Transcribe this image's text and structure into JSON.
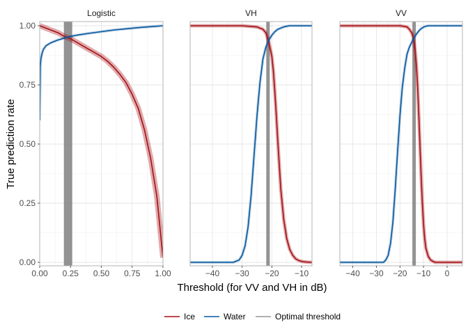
{
  "chart_data": {
    "type": "line",
    "xlabel": "Threshold (for VV and VH in dB)",
    "ylabel": "True prediction rate",
    "ylim": [
      0,
      1
    ],
    "y_ticks": [
      0.0,
      0.25,
      0.5,
      0.75,
      1.0
    ],
    "y_tick_labels": [
      "0.00",
      "0.25",
      "0.50",
      "0.75",
      "1.00"
    ],
    "grid": true,
    "legend_position": "bottom",
    "colors": {
      "Ice": "#a50f15",
      "Water": "#08589e",
      "Optimal threshold": "#808080"
    },
    "legend": [
      "Ice",
      "Water",
      "Optimal threshold"
    ],
    "panels": [
      {
        "title": "Logistic",
        "xlim": [
          0,
          1
        ],
        "x_ticks": [
          0,
          0.25,
          0.5,
          0.75,
          1
        ],
        "x_tick_labels": [
          "0.00",
          "0.25",
          "0.50",
          "0.75",
          "1.00"
        ],
        "optimal_threshold": 0.23,
        "series": [
          {
            "name": "Ice",
            "x": [
              0,
              0.05,
              0.1,
              0.15,
              0.2,
              0.25,
              0.3,
              0.35,
              0.4,
              0.45,
              0.5,
              0.55,
              0.6,
              0.65,
              0.7,
              0.75,
              0.8,
              0.85,
              0.9,
              0.95,
              1.0
            ],
            "y": [
              1.0,
              0.99,
              0.98,
              0.97,
              0.955,
              0.945,
              0.93,
              0.915,
              0.9,
              0.885,
              0.87,
              0.85,
              0.825,
              0.795,
              0.76,
              0.71,
              0.65,
              0.56,
              0.44,
              0.28,
              0.02
            ]
          },
          {
            "name": "Water",
            "x": [
              0,
              0.005,
              0.01,
              0.02,
              0.03,
              0.05,
              0.08,
              0.1,
              0.15,
              0.2,
              0.25,
              0.3,
              0.4,
              0.5,
              0.6,
              0.7,
              0.8,
              0.9,
              1.0
            ],
            "y": [
              0.6,
              0.83,
              0.86,
              0.885,
              0.9,
              0.915,
              0.925,
              0.93,
              0.94,
              0.948,
              0.955,
              0.96,
              0.968,
              0.975,
              0.982,
              0.987,
              0.992,
              0.996,
              1.0
            ]
          }
        ]
      },
      {
        "title": "VH",
        "xlim": [
          -47.5,
          -6.5
        ],
        "x_ticks": [
          -40,
          -30,
          -20,
          -10
        ],
        "x_tick_labels": [
          "−40",
          "−30",
          "−20",
          "−10"
        ],
        "optimal_threshold": -21.3,
        "series": [
          {
            "name": "Ice",
            "x": [
              -47.5,
              -30,
              -25,
              -23,
              -22,
              -21,
              -20,
              -19.5,
              -19,
              -18.5,
              -18,
              -17,
              -16,
              -15,
              -14,
              -13,
              -12,
              -11,
              -10,
              -9,
              -8,
              -6.5
            ],
            "y": [
              1.0,
              1.0,
              0.995,
              0.985,
              0.97,
              0.93,
              0.87,
              0.81,
              0.72,
              0.62,
              0.51,
              0.31,
              0.18,
              0.1,
              0.055,
              0.03,
              0.015,
              0.008,
              0.004,
              0.002,
              0.001,
              0.0
            ]
          },
          {
            "name": "Water",
            "x": [
              -47.5,
              -33,
              -31,
              -30,
              -29,
              -28,
              -27,
              -26,
              -25,
              -24,
              -23,
              -22,
              -21,
              -20,
              -19,
              -18,
              -17,
              -16,
              -15,
              -14,
              -12,
              -10,
              -6.5
            ],
            "y": [
              0.0,
              0.0,
              0.01,
              0.03,
              0.07,
              0.15,
              0.28,
              0.45,
              0.62,
              0.76,
              0.86,
              0.91,
              0.94,
              0.96,
              0.975,
              0.985,
              0.99,
              0.995,
              0.998,
              1.0,
              1.0,
              1.0,
              1.0
            ]
          }
        ]
      },
      {
        "title": "VV",
        "xlim": [
          -45.5,
          6.5
        ],
        "x_ticks": [
          -40,
          -30,
          -20,
          -10,
          0
        ],
        "x_tick_labels": [
          "−40",
          "−30",
          "−20",
          "−10",
          "0"
        ],
        "optimal_threshold": -14.0,
        "series": [
          {
            "name": "Ice",
            "x": [
              -45.5,
              -20,
              -17,
              -16,
              -15,
              -14.5,
              -14,
              -13.5,
              -13,
              -12.5,
              -12,
              -11.5,
              -11,
              -10.5,
              -10,
              -9.5,
              -9,
              -8,
              -7,
              -6,
              -5,
              6.5
            ],
            "y": [
              1.0,
              1.0,
              0.995,
              0.985,
              0.97,
              0.955,
              0.93,
              0.89,
              0.83,
              0.74,
              0.62,
              0.49,
              0.36,
              0.25,
              0.16,
              0.1,
              0.06,
              0.025,
              0.01,
              0.004,
              0.0,
              0.0
            ]
          },
          {
            "name": "Water",
            "x": [
              -45.5,
              -27,
              -26,
              -25,
              -24,
              -23,
              -22,
              -21,
              -20,
              -19,
              -18,
              -17,
              -16,
              -15,
              -14,
              -13,
              -12,
              -11,
              -10,
              -9,
              -8,
              6.5
            ],
            "y": [
              0.0,
              0.0,
              0.01,
              0.03,
              0.08,
              0.17,
              0.31,
              0.47,
              0.62,
              0.74,
              0.82,
              0.88,
              0.91,
              0.93,
              0.95,
              0.965,
              0.978,
              0.988,
              0.994,
              0.998,
              1.0,
              1.0
            ]
          }
        ]
      }
    ]
  }
}
